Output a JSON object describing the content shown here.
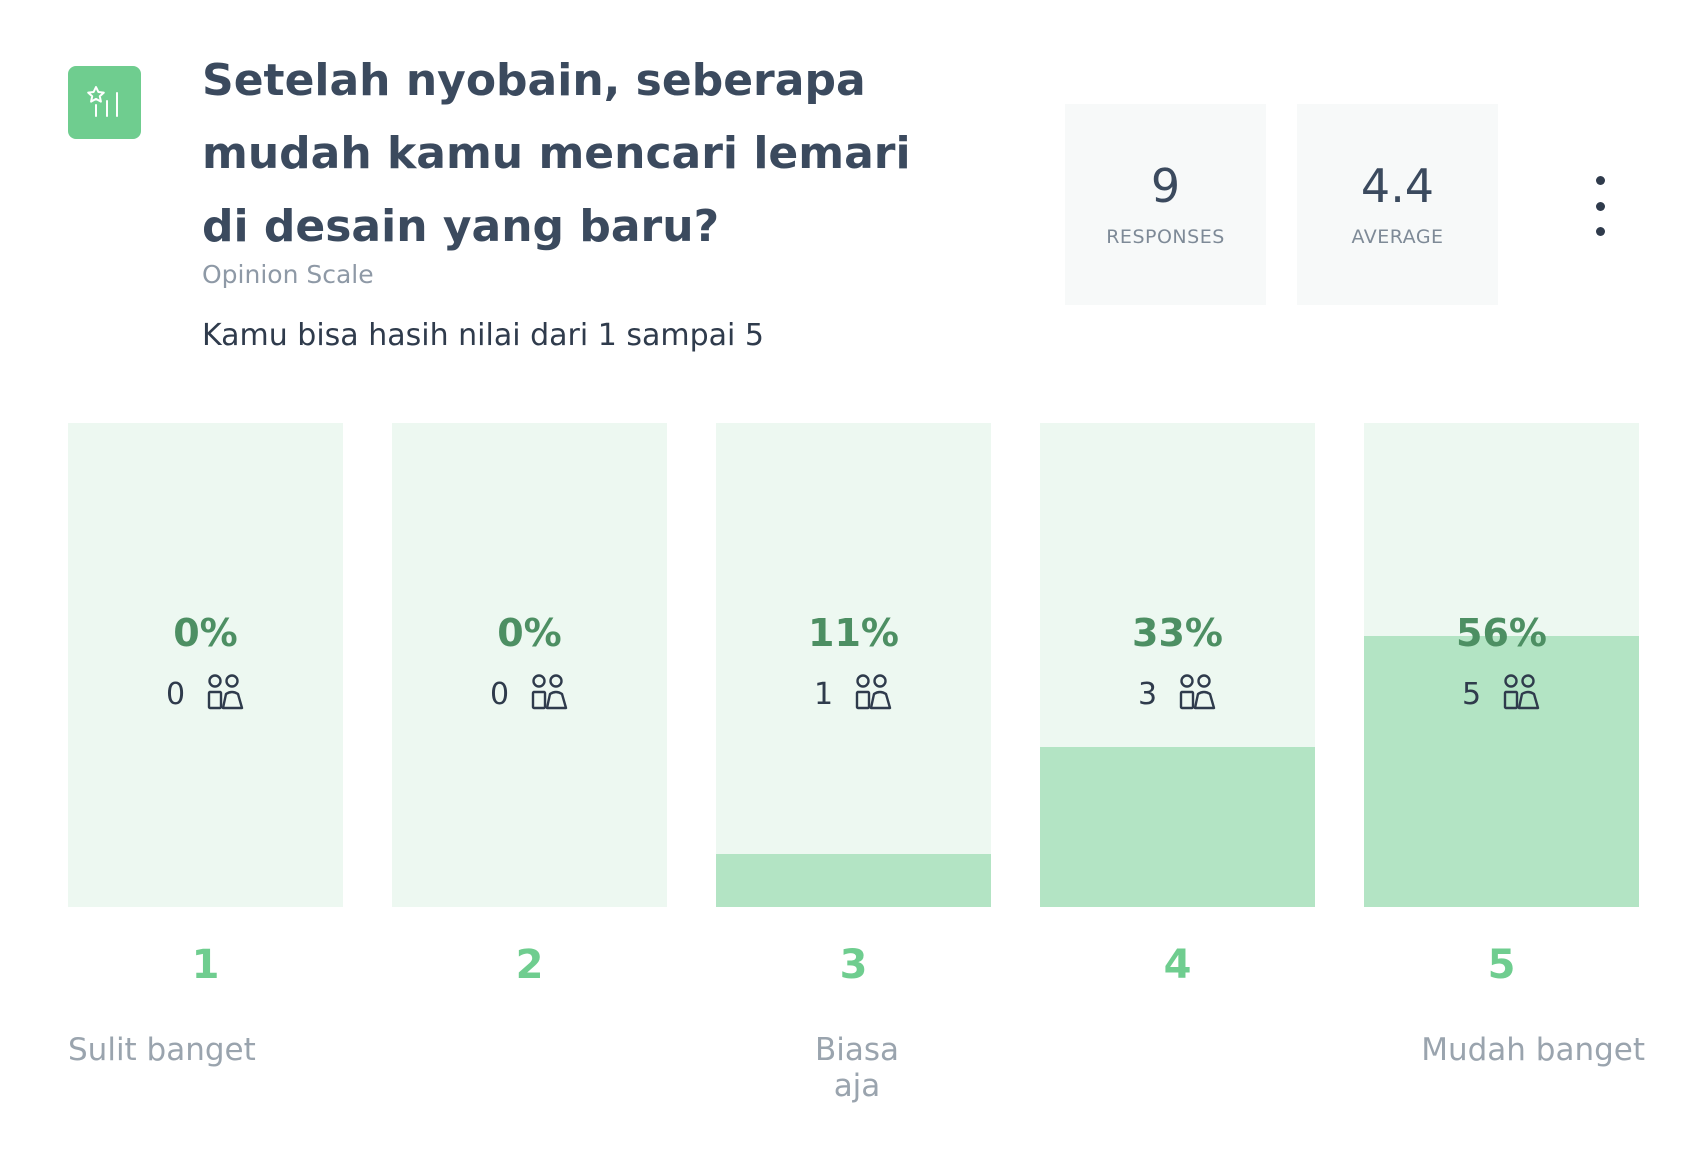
{
  "question": {
    "title": "Setelah nyobain, seberapa mudah kamu mencari lemari di desain yang baru?",
    "type": "Opinion Scale",
    "description": "Kamu bisa hasih nilai dari 1 sampai 5",
    "icon": "opinion-scale-icon"
  },
  "stats": {
    "responses": {
      "value": "9",
      "label": "RESPONSES"
    },
    "average": {
      "value": "4.4",
      "label": "AVERAGE"
    }
  },
  "menu": {
    "icon": "more-vertical-icon"
  },
  "colors": {
    "accent": "#6fcd8f",
    "bar_track": "#edf8f1",
    "bar_fill": "#b3e4c4",
    "percent_text": "#4d8f63"
  },
  "chart_data": {
    "type": "bar",
    "categories": [
      "1",
      "2",
      "3",
      "4",
      "5"
    ],
    "values": [
      0,
      0,
      11,
      33,
      56
    ],
    "value_labels": [
      "0%",
      "0%",
      "11%",
      "33%",
      "56%"
    ],
    "counts": [
      0,
      0,
      1,
      3,
      5
    ],
    "ylim": [
      0,
      100
    ],
    "count_icon": "people-icon",
    "anchors": {
      "left": "Sulit banget",
      "middle": "Biasa aja",
      "right": "Mudah banget"
    }
  }
}
